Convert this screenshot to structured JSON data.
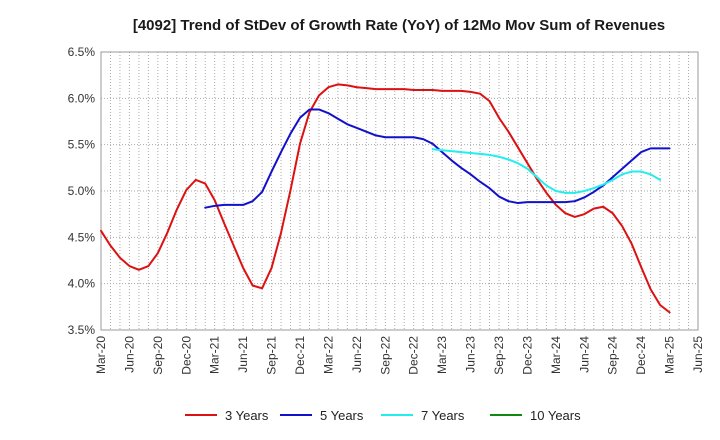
{
  "chart_data": {
    "type": "line",
    "title": "[4092]  Trend of StDev of Growth Rate (YoY) of 12Mo Mov Sum of Revenues",
    "xlabel": "",
    "ylabel": "",
    "ylim": [
      3.5,
      6.5
    ],
    "y_ticks": [
      3.5,
      4.0,
      4.5,
      5.0,
      5.5,
      6.0,
      6.5
    ],
    "y_tick_labels": [
      "3.5%",
      "4.0%",
      "4.5%",
      "5.0%",
      "5.5%",
      "6.0%",
      "6.5%"
    ],
    "x_tick_labels": [
      "Mar-20",
      "Jun-20",
      "Sep-20",
      "Dec-20",
      "Mar-21",
      "Jun-21",
      "Sep-21",
      "Dec-21",
      "Mar-22",
      "Jun-22",
      "Sep-22",
      "Dec-22",
      "Mar-23",
      "Jun-23",
      "Sep-23",
      "Dec-23",
      "Mar-24",
      "Jun-24",
      "Sep-24",
      "Dec-24",
      "Mar-25",
      "Jun-25"
    ],
    "x_count": 64,
    "grid": true,
    "legend_position": "bottom",
    "series": [
      {
        "name": "3 Years",
        "color": "#dd1111",
        "start_index": 0,
        "values": [
          4.57,
          4.41,
          4.28,
          4.19,
          4.15,
          4.19,
          4.33,
          4.55,
          4.8,
          5.01,
          5.12,
          5.08,
          4.9,
          4.65,
          4.41,
          4.17,
          3.98,
          3.95,
          4.17,
          4.55,
          5.01,
          5.51,
          5.85,
          6.03,
          6.12,
          6.15,
          6.14,
          6.12,
          6.11,
          6.1,
          6.1,
          6.1,
          6.1,
          6.09,
          6.09,
          6.09,
          6.08,
          6.08,
          6.08,
          6.07,
          6.05,
          5.97,
          5.79,
          5.64,
          5.47,
          5.3,
          5.13,
          4.98,
          4.85,
          4.76,
          4.72,
          4.75,
          4.81,
          4.83,
          4.76,
          4.62,
          4.43,
          4.18,
          3.94,
          3.77,
          3.69
        ]
      },
      {
        "name": "5 Years",
        "color": "#1111cc",
        "start_index": 11,
        "values": [
          4.82,
          4.84,
          4.85,
          4.85,
          4.85,
          4.89,
          4.99,
          5.21,
          5.42,
          5.62,
          5.79,
          5.88,
          5.88,
          5.84,
          5.78,
          5.72,
          5.68,
          5.64,
          5.6,
          5.58,
          5.58,
          5.58,
          5.58,
          5.56,
          5.51,
          5.42,
          5.33,
          5.25,
          5.18,
          5.1,
          5.03,
          4.94,
          4.89,
          4.87,
          4.88,
          4.88,
          4.88,
          4.88,
          4.88,
          4.89,
          4.93,
          4.99,
          5.06,
          5.15,
          5.24,
          5.33,
          5.42,
          5.46,
          5.46,
          5.46
        ]
      },
      {
        "name": "7 Years",
        "color": "#22eeee",
        "start_index": 35,
        "values": [
          5.45,
          5.44,
          5.43,
          5.42,
          5.41,
          5.4,
          5.39,
          5.37,
          5.34,
          5.3,
          5.24,
          5.15,
          5.06,
          5.0,
          4.98,
          4.98,
          5.0,
          5.03,
          5.07,
          5.12,
          5.18,
          5.21,
          5.21,
          5.18,
          5.12
        ]
      },
      {
        "name": "10 Years",
        "color": "#118811",
        "start_index": 0,
        "values": []
      }
    ]
  }
}
